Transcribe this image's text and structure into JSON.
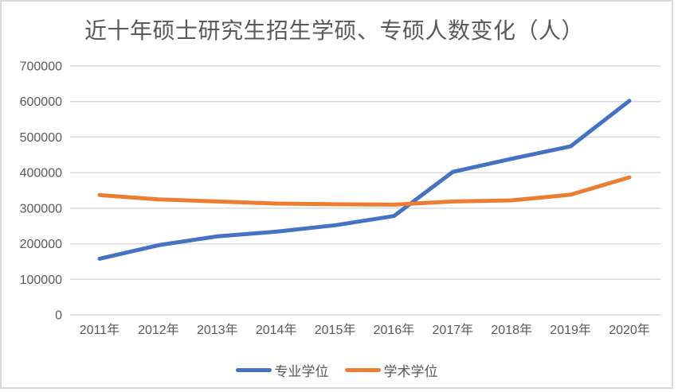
{
  "frame": {
    "border_color": "#d9d9d9",
    "background": "#ffffff"
  },
  "chart_data": {
    "type": "line",
    "title": "近十年硕士研究生招生学硕、专硕人数变化（人）",
    "categories": [
      "2011年",
      "2012年",
      "2013年",
      "2014年",
      "2015年",
      "2016年",
      "2017年",
      "2018年",
      "2019年",
      "2020年"
    ],
    "series": [
      {
        "name": "专业学位",
        "color": "#4472C4",
        "values": [
          158000,
          196000,
          221000,
          234000,
          252000,
          278000,
          402000,
          439000,
          474000,
          602000
        ]
      },
      {
        "name": "学术学位",
        "color": "#ED7D31",
        "values": [
          337000,
          325000,
          319000,
          313000,
          311000,
          310000,
          319000,
          322000,
          338000,
          387000
        ]
      }
    ],
    "y_ticks": [
      0,
      100000,
      200000,
      300000,
      400000,
      500000,
      600000,
      700000
    ],
    "ylim": [
      0,
      700000
    ],
    "xlabel": "",
    "ylabel": "",
    "grid": true,
    "gridline_color": "#d9d9d9",
    "axis_text_color": "#595959",
    "title_color": "#595959",
    "legend_position": "bottom"
  }
}
